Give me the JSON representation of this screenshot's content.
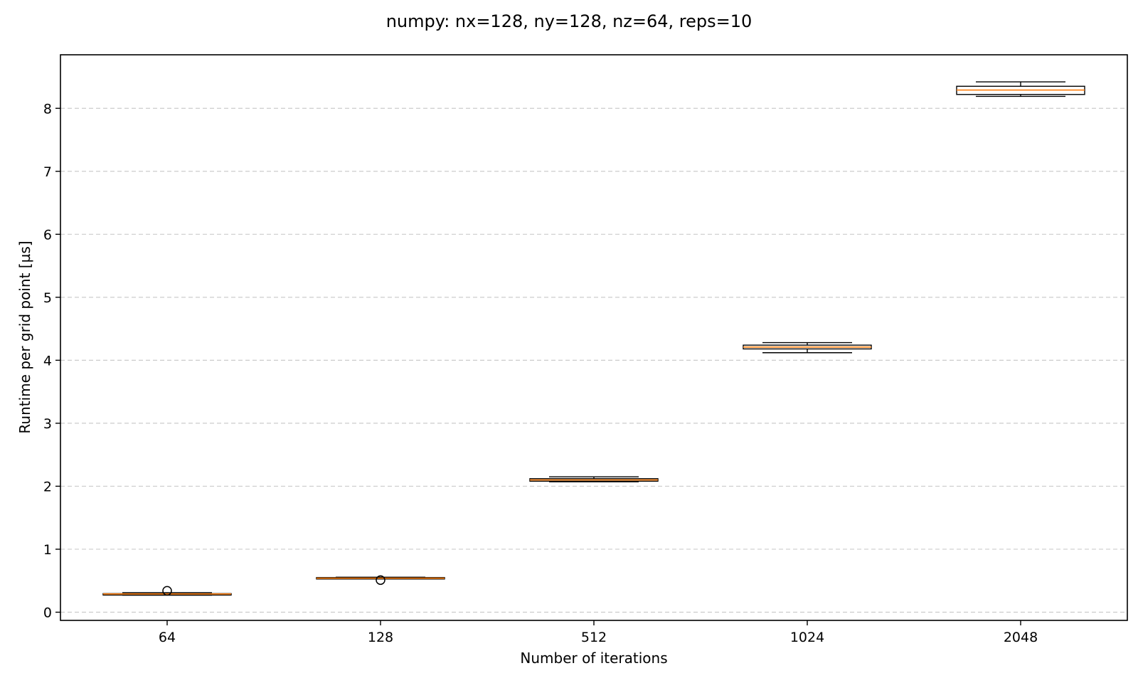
{
  "chart_data": {
    "type": "box",
    "title": "numpy: nx=128, ny=128, nz=64, reps=10",
    "xlabel": "Number of iterations",
    "ylabel": "Runtime per grid point [µs]",
    "categories": [
      "64",
      "128",
      "512",
      "1024",
      "2048"
    ],
    "ylim": [
      -0.13,
      8.85
    ],
    "yticks": [
      0,
      1,
      2,
      3,
      4,
      5,
      6,
      7,
      8
    ],
    "grid": "y-dashed",
    "boxes": [
      {
        "category": "64",
        "whislo": 0.27,
        "q1": 0.28,
        "median": 0.29,
        "q3": 0.295,
        "whishi": 0.31,
        "fliers": [
          0.34
        ]
      },
      {
        "category": "128",
        "whislo": 0.53,
        "q1": 0.535,
        "median": 0.54,
        "q3": 0.55,
        "whishi": 0.555,
        "fliers": [
          0.51
        ]
      },
      {
        "category": "512",
        "whislo": 2.07,
        "q1": 2.08,
        "median": 2.1,
        "q3": 2.12,
        "whishi": 2.15,
        "fliers": []
      },
      {
        "category": "1024",
        "whislo": 4.12,
        "q1": 4.18,
        "median": 4.21,
        "q3": 4.24,
        "whishi": 4.28,
        "fliers": []
      },
      {
        "category": "2048",
        "whislo": 8.19,
        "q1": 8.22,
        "median": 8.29,
        "q3": 8.35,
        "whishi": 8.42,
        "fliers": []
      }
    ],
    "colors": {
      "box": "#000000",
      "median": "#ff7f0e",
      "grid": "#cccccc",
      "flier": "#000000"
    }
  }
}
